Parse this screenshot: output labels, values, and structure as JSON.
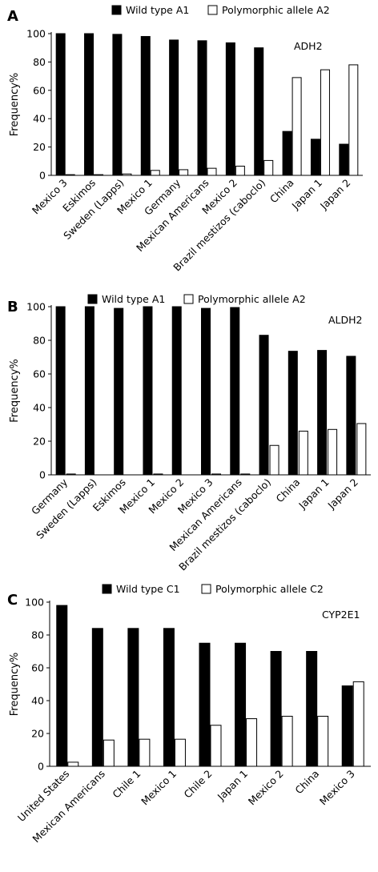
{
  "colors": {
    "wild_type": "#000000",
    "polymorphic": "#ffffff",
    "stroke": "#000000"
  },
  "chart_data": [
    {
      "type": "bar",
      "panel": "A",
      "gene": "ADH2",
      "ylabel": "Frequency%",
      "ylim": [
        0,
        100
      ],
      "yticks": [
        0,
        20,
        40,
        60,
        80,
        100
      ],
      "legend_placement": "top",
      "categories": [
        "Mexico 3",
        "Eskimos",
        "Sweden (Lapps)",
        "Mexico 1",
        "Germany",
        "Mexican Americans",
        "Mexico 2",
        "Brazil mestizos (caboclo)",
        "China",
        "Japan 1",
        "Japan 2"
      ],
      "series": [
        {
          "name": "Wild type A1",
          "values": [
            100,
            100,
            99.5,
            98,
            95.5,
            95,
            93.5,
            90,
            31,
            25.5,
            22
          ]
        },
        {
          "name": "Polymorphic allele A2",
          "values": [
            0.5,
            0.5,
            1,
            3.5,
            4,
            5,
            6.5,
            10.5,
            69,
            74.5,
            78
          ]
        }
      ]
    },
    {
      "type": "bar",
      "panel": "B",
      "gene": "ALDH2",
      "ylabel": "Frequency%",
      "ylim": [
        0,
        100
      ],
      "yticks": [
        0,
        20,
        40,
        60,
        80,
        100
      ],
      "legend_placement": "top",
      "categories": [
        "Germany",
        "Sweden (Lapps)",
        "Eskimos",
        "Mexico 1",
        "Mexico 2",
        "Mexico 3",
        "Mexican Americans",
        "Brazil mestizos (caboclo)",
        "China",
        "Japan 1",
        "Japan 2"
      ],
      "series": [
        {
          "name": "Wild type A1",
          "values": [
            100,
            100,
            99,
            100,
            100,
            99,
            99.5,
            83,
            73.5,
            74,
            70.5
          ]
        },
        {
          "name": "Polymorphic allele A2",
          "values": [
            0.5,
            0,
            0,
            0.5,
            0,
            0.5,
            0.5,
            17.5,
            26,
            27,
            30.5
          ]
        }
      ]
    },
    {
      "type": "bar",
      "panel": "C",
      "gene": "CYP2E1",
      "ylabel": "Frequency%",
      "ylim": [
        0,
        100
      ],
      "yticks": [
        0,
        20,
        40,
        60,
        80,
        100
      ],
      "legend_placement": "top",
      "categories": [
        "United States",
        "Mexican Americans",
        "Chile 1",
        "Mexico 1",
        "Chile 2",
        "Japan 1",
        "Mexico 2",
        "China",
        "Mexico 3"
      ],
      "series": [
        {
          "name": "Wild type C1",
          "values": [
            98,
            84,
            84,
            84,
            75,
            75,
            70,
            70,
            49
          ]
        },
        {
          "name": "Polymorphic allele C2",
          "values": [
            2.5,
            16,
            16.5,
            16.5,
            25,
            29,
            30.5,
            30.5,
            51.5
          ]
        }
      ]
    }
  ]
}
